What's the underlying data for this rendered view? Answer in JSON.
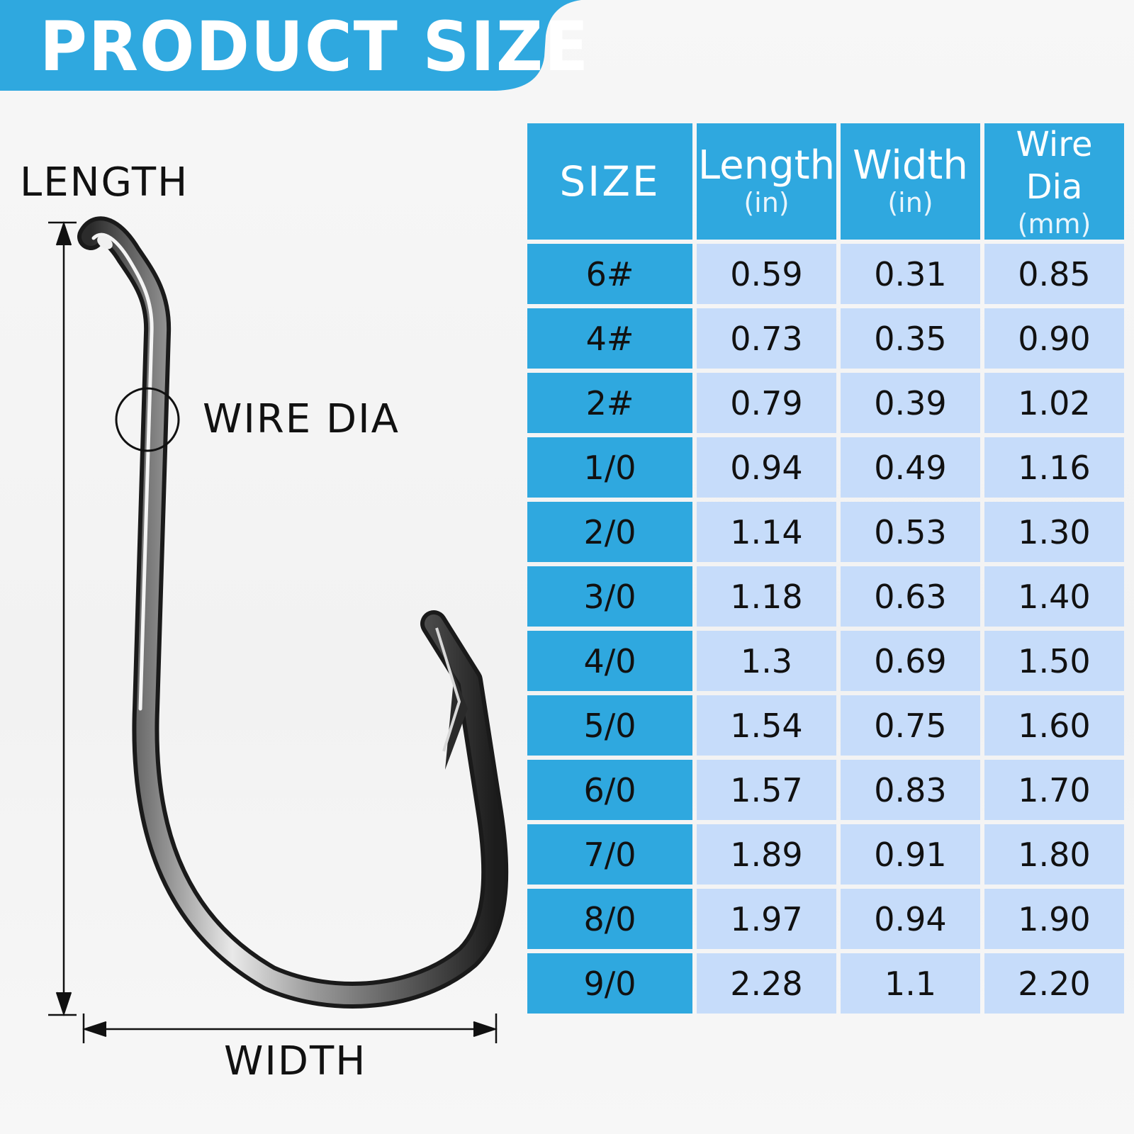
{
  "banner": {
    "title": "PRODUCT SIZE",
    "color": "#2fa8df"
  },
  "diagram": {
    "length_label": "LENGTH",
    "wire_label": "WIRE DIA",
    "width_label": "WIDTH"
  },
  "table": {
    "headers": [
      {
        "main": "SIZE",
        "unit": ""
      },
      {
        "main": "Length",
        "unit": "(in)"
      },
      {
        "main": "Width",
        "unit": "(in)"
      },
      {
        "main": "Wire Dia",
        "unit": "(mm)"
      }
    ],
    "rows": [
      [
        "6#",
        "0.59",
        "0.31",
        "0.85"
      ],
      [
        "4#",
        "0.73",
        "0.35",
        "0.90"
      ],
      [
        "2#",
        "0.79",
        "0.39",
        "1.02"
      ],
      [
        "1/0",
        "0.94",
        "0.49",
        "1.16"
      ],
      [
        "2/0",
        "1.14",
        "0.53",
        "1.30"
      ],
      [
        "3/0",
        "1.18",
        "0.63",
        "1.40"
      ],
      [
        "4/0",
        "1.3",
        "0.69",
        "1.50"
      ],
      [
        "5/0",
        "1.54",
        "0.75",
        "1.60"
      ],
      [
        "6/0",
        "1.57",
        "0.83",
        "1.70"
      ],
      [
        "7/0",
        "1.89",
        "0.91",
        "1.80"
      ],
      [
        "8/0",
        "1.97",
        "0.94",
        "1.90"
      ],
      [
        "9/0",
        "2.28",
        "1.1",
        "2.20"
      ]
    ],
    "header_color": "#2fa8df",
    "cell_color": "#c6dcfa"
  }
}
